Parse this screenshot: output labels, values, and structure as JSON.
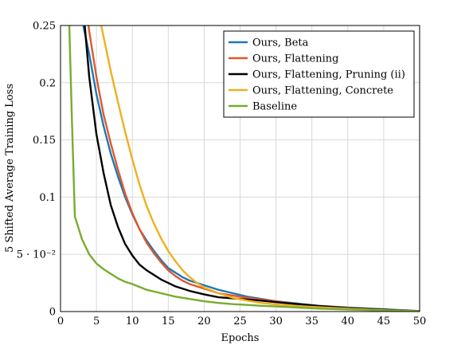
{
  "chart_data": {
    "type": "line",
    "title": "",
    "xlabel": "Epochs",
    "ylabel": "5 Shifted Average Training Loss",
    "xlim": [
      0,
      50
    ],
    "ylim": [
      0,
      0.25
    ],
    "grid": true,
    "legend_position": "top-right",
    "x_ticks": [
      {
        "value": 0,
        "label": "0"
      },
      {
        "value": 5,
        "label": "5"
      },
      {
        "value": 10,
        "label": "10"
      },
      {
        "value": 15,
        "label": "15"
      },
      {
        "value": 20,
        "label": "20"
      },
      {
        "value": 25,
        "label": "25"
      },
      {
        "value": 30,
        "label": "30"
      },
      {
        "value": 35,
        "label": "35"
      },
      {
        "value": 40,
        "label": "40"
      },
      {
        "value": 45,
        "label": "45"
      },
      {
        "value": 50,
        "label": "50"
      }
    ],
    "y_ticks": [
      {
        "value": 0,
        "label": "0"
      },
      {
        "value": 0.05,
        "label": "5 · 10⁻²"
      },
      {
        "value": 0.1,
        "label": "0.1"
      },
      {
        "value": 0.15,
        "label": "0.15"
      },
      {
        "value": 0.2,
        "label": "0.2"
      },
      {
        "value": 0.25,
        "label": "0.25"
      }
    ],
    "series": [
      {
        "name": "Ours, Beta",
        "color": "#1f77b4",
        "x": [
          3,
          4,
          5,
          6,
          7,
          8,
          9,
          10,
          11,
          12,
          13,
          14,
          15,
          16,
          17,
          18,
          19,
          20,
          22,
          24,
          26,
          28,
          30,
          33,
          36,
          40,
          45,
          50
        ],
        "y": [
          0.255,
          0.225,
          0.19,
          0.162,
          0.138,
          0.118,
          0.1,
          0.085,
          0.072,
          0.062,
          0.053,
          0.045,
          0.038,
          0.034,
          0.03,
          0.027,
          0.025,
          0.023,
          0.019,
          0.016,
          0.013,
          0.011,
          0.009,
          0.007,
          0.005,
          0.0035,
          0.002,
          0.0005
        ]
      },
      {
        "name": "Ours, Flattening",
        "color": "#e0582b",
        "x": [
          3.8,
          4,
          5,
          6,
          7,
          8,
          9,
          10,
          11,
          12,
          13,
          14,
          15,
          16,
          17,
          18,
          19,
          20,
          22,
          24,
          26,
          28,
          30,
          33,
          36,
          40,
          45,
          50
        ],
        "y": [
          0.255,
          0.245,
          0.205,
          0.172,
          0.147,
          0.124,
          0.103,
          0.086,
          0.072,
          0.06,
          0.051,
          0.043,
          0.036,
          0.031,
          0.027,
          0.024,
          0.022,
          0.02,
          0.016,
          0.014,
          0.012,
          0.0105,
          0.009,
          0.0065,
          0.0048,
          0.0032,
          0.0015,
          0.0003
        ]
      },
      {
        "name": "Ours, Flattening, Pruning (ii)",
        "color": "#000000",
        "x": [
          3.3,
          4,
          5,
          6,
          7,
          8,
          9,
          10,
          11,
          12,
          13,
          14,
          15,
          16,
          17,
          18,
          19,
          20,
          22,
          24,
          26,
          28,
          30,
          33,
          36,
          40,
          45,
          50
        ],
        "y": [
          0.255,
          0.205,
          0.155,
          0.121,
          0.093,
          0.074,
          0.059,
          0.049,
          0.041,
          0.036,
          0.032,
          0.028,
          0.025,
          0.022,
          0.02,
          0.018,
          0.0165,
          0.015,
          0.0125,
          0.0115,
          0.0105,
          0.0095,
          0.0082,
          0.0065,
          0.0048,
          0.003,
          0.0015,
          0.0003
        ]
      },
      {
        "name": "Ours, Flattening, Concrete",
        "color": "#edb120",
        "x": [
          5.5,
          6,
          7,
          8,
          9,
          10,
          11,
          12,
          13,
          14,
          15,
          16,
          17,
          18,
          19,
          20,
          22,
          24,
          26,
          28,
          30,
          33,
          36,
          40,
          45,
          50
        ],
        "y": [
          0.255,
          0.24,
          0.21,
          0.183,
          0.157,
          0.133,
          0.111,
          0.092,
          0.077,
          0.064,
          0.053,
          0.044,
          0.036,
          0.03,
          0.025,
          0.021,
          0.016,
          0.012,
          0.0095,
          0.0075,
          0.0062,
          0.0048,
          0.0038,
          0.0025,
          0.0012,
          0.0003
        ]
      },
      {
        "name": "Baseline",
        "color": "#77ac30",
        "x": [
          1.2,
          1.6,
          2,
          3,
          4,
          5,
          6,
          7,
          8,
          9,
          10,
          12,
          14,
          16,
          18,
          20,
          22,
          24,
          26,
          28,
          30,
          33,
          36,
          40,
          45,
          50
        ],
        "y": [
          0.255,
          0.165,
          0.083,
          0.063,
          0.05,
          0.042,
          0.037,
          0.033,
          0.029,
          0.026,
          0.024,
          0.019,
          0.016,
          0.013,
          0.011,
          0.009,
          0.0075,
          0.0065,
          0.0058,
          0.005,
          0.0045,
          0.0035,
          0.0026,
          0.0018,
          0.0009,
          0.0002
        ]
      }
    ]
  }
}
